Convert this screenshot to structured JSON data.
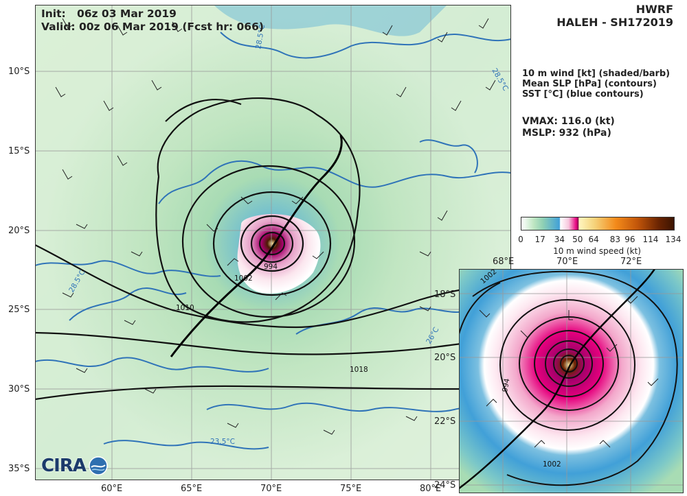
{
  "header": {
    "init_label": "Init:",
    "init_value": "06z 03 Mar 2019",
    "valid_label": "Valid:",
    "valid_value": "00z 06 Mar 2019 (Fcst hr: 066)",
    "model": "HWRF",
    "storm": "HALEH - SH172019"
  },
  "legend": {
    "line1": "10 m wind [kt] (shaded/barb)",
    "line2": "Mean SLP [hPa] (contours)",
    "line3": "SST [°C] (blue contours)"
  },
  "stats": {
    "vmax": "VMAX: 116.0 (kt)",
    "mslp": "MSLP:  932 (hPa)"
  },
  "colorbar": {
    "ticks": [
      "0",
      "17",
      "34",
      "50",
      "64",
      "83",
      "96",
      "114",
      "134"
    ],
    "label": "10 m wind speed (kt)",
    "colors": [
      "#f2fbea",
      "#a8dcb4",
      "#41a0d8",
      "#e6007e",
      "#f5e19a",
      "#f38a1a",
      "#a43f06",
      "#4b1a02"
    ]
  },
  "main_map": {
    "lat_labels": [
      "10°S",
      "15°S",
      "20°S",
      "25°S",
      "30°S",
      "35°S"
    ],
    "lon_labels": [
      "60°E",
      "65°E",
      "70°E",
      "75°E",
      "80°E"
    ],
    "contour_labels": [
      "1010",
      "1002",
      "994",
      "1018",
      "28.5°C",
      "26°C",
      "23.5°C",
      "28.5°C",
      "28.5°C"
    ]
  },
  "inset_map": {
    "lon_labels": [
      "68°E",
      "70°E",
      "72°E"
    ],
    "lat_labels": [
      "18°S",
      "20°S",
      "22°S",
      "24°S"
    ],
    "contour_labels": [
      "1002",
      "1002",
      "994"
    ]
  },
  "logo": {
    "text": "CIRA"
  }
}
